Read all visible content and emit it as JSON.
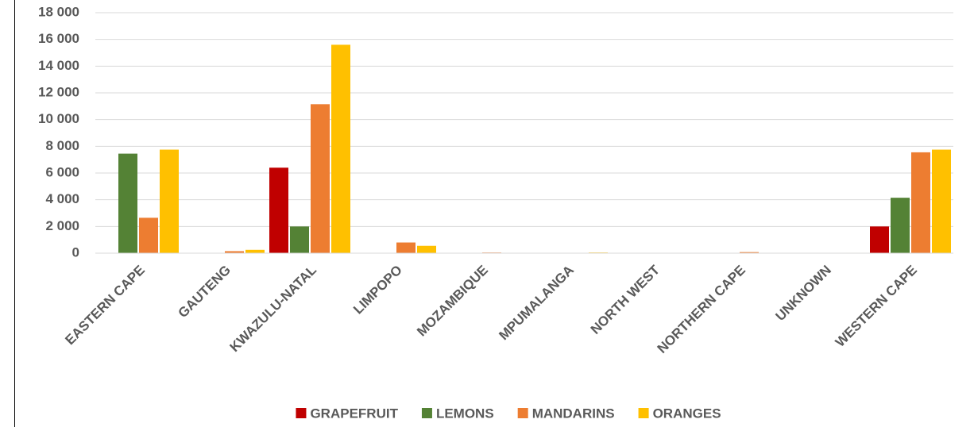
{
  "chart_data": {
    "type": "bar",
    "categories": [
      "EASTERN CAPE",
      "GAUTENG",
      "KWAZULU-NATAL",
      "LIMPOPO",
      "MOZAMBIQUE",
      "MPUMALANGA",
      "NORTH WEST",
      "NORTHERN CAPE",
      "UNKNOWN",
      "WESTERN CAPE"
    ],
    "series": [
      {
        "name": "GRAPEFRUIT",
        "color": "#c00000",
        "values": [
          0,
          0,
          6400,
          0,
          0,
          0,
          0,
          0,
          0,
          2000
        ]
      },
      {
        "name": "LEMONS",
        "color": "#548235",
        "values": [
          7450,
          0,
          2000,
          0,
          0,
          0,
          0,
          0,
          0,
          4150
        ]
      },
      {
        "name": "MANDARINS",
        "color": "#ed7d31",
        "values": [
          2650,
          150,
          11150,
          800,
          50,
          0,
          0,
          80,
          0,
          7550
        ]
      },
      {
        "name": "ORANGES",
        "color": "#ffc000",
        "values": [
          7750,
          250,
          15600,
          550,
          0,
          50,
          0,
          0,
          30,
          7750
        ]
      }
    ],
    "ylim": [
      0,
      18000
    ],
    "yticks": [
      0,
      {
        "value": 2000,
        "label": "2 000"
      },
      {
        "value": 4000,
        "label": "4 000"
      },
      {
        "value": 6000,
        "label": "6 000"
      },
      {
        "value": 8000,
        "label": "8 000"
      },
      {
        "value": 10000,
        "label": "10 000"
      },
      {
        "value": 12000,
        "label": "12 000"
      },
      {
        "value": 14000,
        "label": "14 000"
      },
      {
        "value": 16000,
        "label": "16 000"
      },
      {
        "value": 18000,
        "label": "18 000"
      }
    ],
    "grid": true,
    "legend": "bottom"
  }
}
